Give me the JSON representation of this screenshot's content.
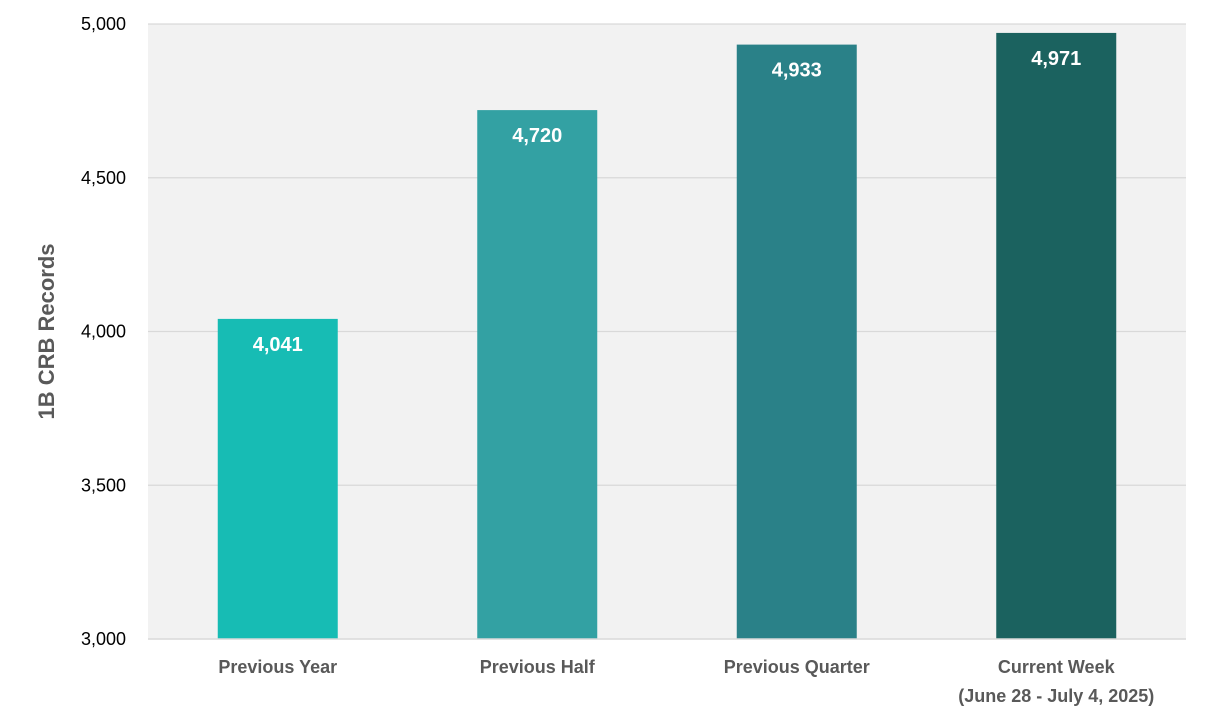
{
  "chart_data": {
    "type": "bar",
    "title": "",
    "xlabel": "",
    "ylabel": "1B CRB Records",
    "ylim": [
      3000,
      5000
    ],
    "yticks": [
      3000,
      3500,
      4000,
      4500,
      5000
    ],
    "grid": true,
    "legend": "none",
    "plot_background": "#f2f2f2",
    "gridline_color": "#d9d9d9",
    "categories": [
      {
        "line1": "Previous Year",
        "line2": ""
      },
      {
        "line1": "Previous Half",
        "line2": ""
      },
      {
        "line1": "Previous Quarter",
        "line2": ""
      },
      {
        "line1": "Current Week",
        "line2": "(June 28 - July 4, 2025)"
      }
    ],
    "values": [
      4041,
      4720,
      4933,
      4971
    ],
    "value_labels": [
      "4,041",
      "4,720",
      "4,933",
      "4,971"
    ],
    "colors": [
      "#17bcb4",
      "#33a1a3",
      "#2a8188",
      "#1b625f"
    ]
  }
}
